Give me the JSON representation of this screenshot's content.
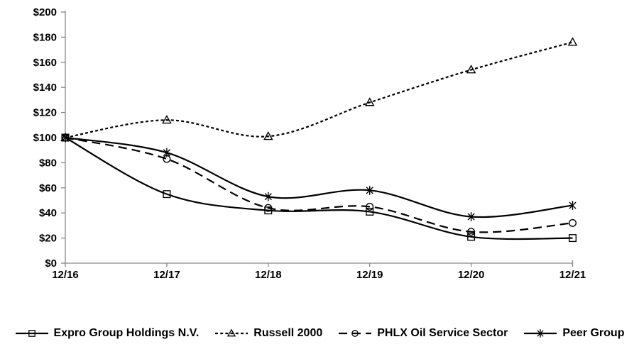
{
  "chart_data": {
    "type": "line",
    "title": "",
    "xlabel": "",
    "ylabel": "",
    "x": [
      "12/16",
      "12/17",
      "12/18",
      "12/19",
      "12/20",
      "12/21"
    ],
    "ylim": [
      0,
      200
    ],
    "ytick_step": 20,
    "ytick_labels": [
      "$0",
      "$20",
      "$40",
      "$60",
      "$80",
      "$100",
      "$120",
      "$140",
      "$160",
      "$180",
      "$200"
    ],
    "grid": false,
    "smoothed": true,
    "legend_position": "bottom",
    "line_color": "#000000",
    "axis_color": "#878787",
    "series": [
      {
        "name": "Expro Group Holdings N.V.",
        "marker": "square",
        "line": "solid",
        "values": [
          100,
          55,
          42,
          41,
          21,
          20
        ]
      },
      {
        "name": "Russell 2000",
        "marker": "triangle",
        "line": "dotted",
        "values": [
          100,
          114,
          101,
          128,
          154,
          176
        ]
      },
      {
        "name": "PHLX Oil Service Sector",
        "marker": "circle",
        "line": "dashed",
        "values": [
          100,
          83,
          44,
          45,
          25,
          32
        ]
      },
      {
        "name": "Peer Group",
        "marker": "asterisk",
        "line": "solid",
        "values": [
          100,
          88,
          53,
          58,
          37,
          46
        ]
      }
    ]
  }
}
